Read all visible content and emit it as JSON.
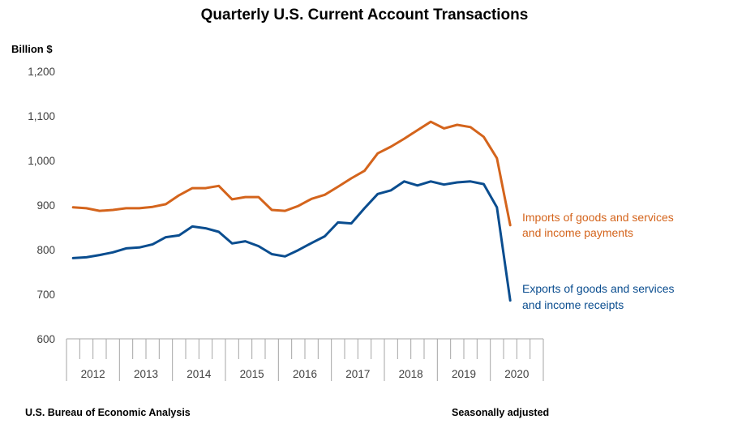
{
  "chart_data": {
    "type": "line",
    "title": "Quarterly U.S. Current Account Transactions",
    "ylabel": "Billion $",
    "ylim": [
      600,
      1200
    ],
    "yticks": [
      600,
      700,
      800,
      900,
      1000,
      1100,
      1200
    ],
    "ytick_labels": [
      "600",
      "700",
      "800",
      "900",
      "1,000",
      "1,100",
      "1,200"
    ],
    "years": [
      "2012",
      "2013",
      "2014",
      "2015",
      "2016",
      "2017",
      "2018",
      "2019",
      "2020"
    ],
    "quarters_per_year": 4,
    "grid": false,
    "series": [
      {
        "label_lines": [
          "Imports of goods and services",
          "and income payments"
        ],
        "color": "#d4641c",
        "values": [
          895,
          893,
          887,
          889,
          893,
          893,
          896,
          902,
          922,
          938,
          938,
          943,
          913,
          918,
          918,
          889,
          887,
          898,
          914,
          923,
          941,
          960,
          977,
          1016,
          1031,
          1049,
          1068,
          1087,
          1072,
          1080,
          1075,
          1053,
          1005,
          855
        ]
      },
      {
        "label_lines": [
          "Exports of goods and services",
          "and income receipts"
        ],
        "color": "#0a4d8f",
        "values": [
          781,
          783,
          788,
          794,
          803,
          805,
          812,
          828,
          832,
          852,
          848,
          840,
          814,
          819,
          808,
          790,
          785,
          799,
          815,
          830,
          861,
          859,
          893,
          925,
          933,
          953,
          944,
          953,
          946,
          951,
          953,
          947,
          895,
          686
        ]
      }
    ]
  },
  "footer": {
    "source": "U.S. Bureau of Economic Analysis",
    "note": "Seasonally adjusted"
  }
}
